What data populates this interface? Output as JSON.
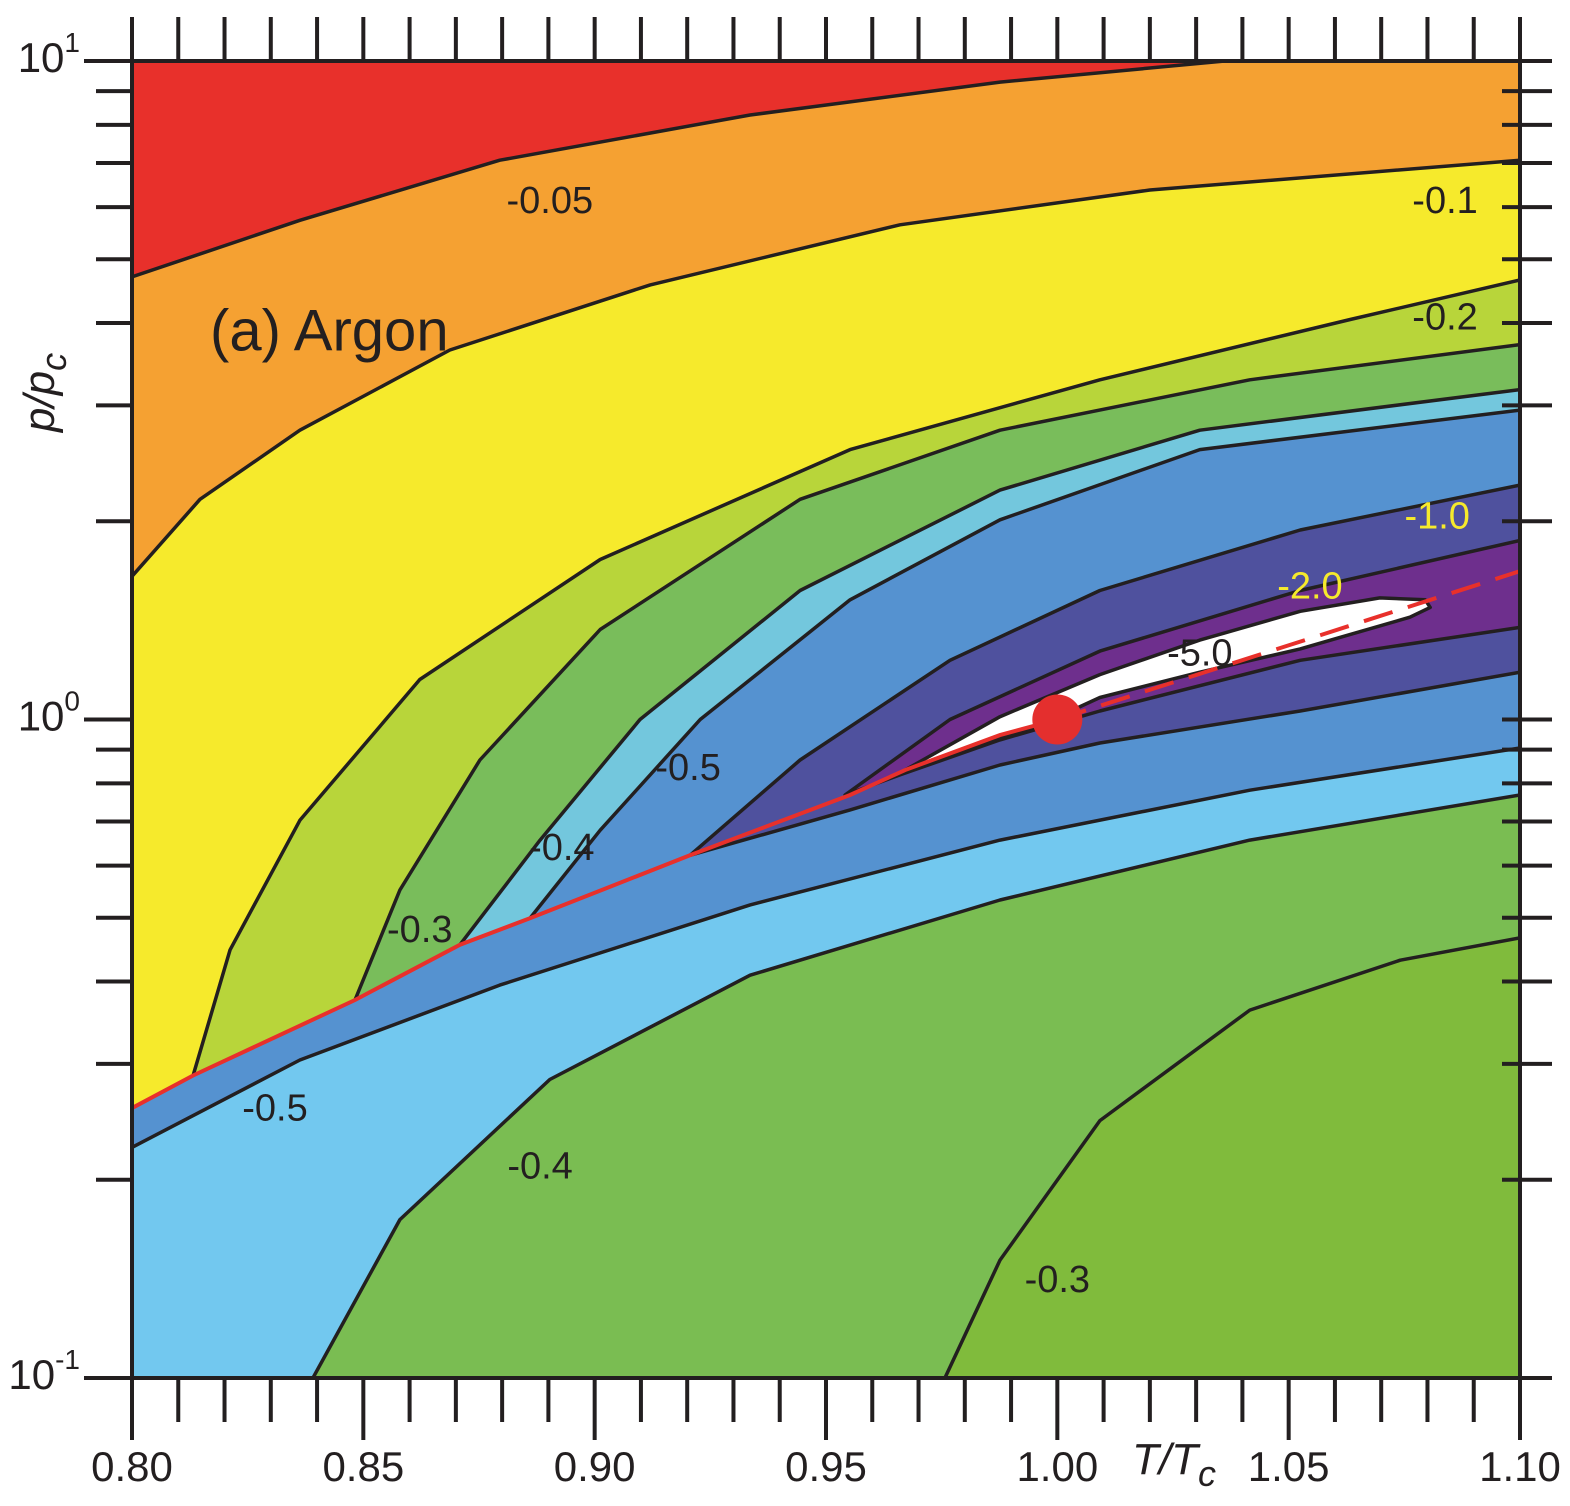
{
  "chart_data": {
    "type": "contour",
    "annotation": "(a) Argon",
    "xlabel": {
      "text": "T/T",
      "subscript": "c"
    },
    "ylabel": {
      "text": "p/p",
      "subscript": "c"
    },
    "xlim": [
      0.8,
      1.1
    ],
    "ylim": [
      0.1,
      10
    ],
    "yscale": "log",
    "xticks": [
      {
        "value": 0.8,
        "label": "0.80"
      },
      0.85,
      {
        "value": 0.9,
        "label": "0.90"
      },
      0.95,
      {
        "value": 1.0,
        "label": "1.00"
      },
      1.05,
      {
        "value": 1.1,
        "label": "1.10"
      }
    ],
    "xminorticks": [
      0.81,
      0.82,
      0.83,
      0.84,
      0.86,
      0.87,
      0.88,
      0.89,
      0.91,
      0.92,
      0.93,
      0.94,
      0.96,
      0.97,
      0.98,
      0.99,
      1.01,
      1.02,
      1.03,
      1.04,
      1.06,
      1.07,
      1.08,
      1.09
    ],
    "yticks": [
      {
        "value": 0.1,
        "label": "10",
        "exponent": "-1"
      },
      {
        "value": 1,
        "label": "10",
        "exponent": "0"
      },
      {
        "value": 10,
        "label": "10",
        "exponent": "1"
      }
    ],
    "yminorticks": [
      0.2,
      0.3,
      0.4,
      0.5,
      0.6,
      0.7,
      0.8,
      0.9,
      2,
      3,
      4,
      5,
      6,
      7,
      8,
      9
    ],
    "background": "#80bb3c",
    "regions": [
      {
        "fill": "#7abd52",
        "x": [
          0.9757,
          0.9876,
          1.0092,
          1.0416,
          1.0741,
          1.1
        ],
        "y": [
          0.1,
          0.151,
          0.246,
          0.362,
          0.431,
          0.466
        ]
      },
      {
        "fill": "#72c8ef",
        "x": [
          0.8391,
          0.8579,
          0.8903,
          0.9336,
          0.9876,
          1.0416,
          1.1
        ],
        "y": [
          0.1,
          0.174,
          0.284,
          0.409,
          0.532,
          0.656,
          0.768
        ]
      },
      {
        "fill": "#5592d0",
        "x": [
          0.8,
          0.8363,
          0.8795,
          0.9336,
          0.9876,
          1.0416,
          1.1
        ],
        "y": [
          0.224,
          0.304,
          0.395,
          0.523,
          0.656,
          0.781,
          0.905
        ]
      },
      {
        "fill": "#4f519e",
        "x": [
          0.9206,
          0.9552,
          0.9876,
          1.0092,
          1.0525,
          1.1
        ],
        "y": [
          0.622,
          0.729,
          0.853,
          0.921,
          1.03,
          1.18
        ]
      },
      {
        "fill": "#6e2f8d",
        "closed": true,
        "x": [
          0.9541,
          0.9768,
          1.0092,
          1.0525,
          1.1,
          1.1,
          1.0525,
          1.0092,
          0.9876,
          0.966
        ],
        "y": [
          0.768,
          1.0,
          1.27,
          1.57,
          1.87,
          1.38,
          1.23,
          1.03,
          0.931,
          0.824
        ]
      },
      {
        "fill": "#ffffff",
        "closed": true,
        "x": [
          0.9671,
          0.9876,
          1.0092,
          1.0308,
          1.0525,
          1.0697,
          1.0795,
          1.0806,
          1.0762,
          1.0525,
          1.0308,
          1.0092,
          0.9963,
          0.979
        ],
        "y": [
          0.838,
          1.01,
          1.17,
          1.32,
          1.46,
          1.53,
          1.52,
          1.48,
          1.43,
          1.28,
          1.18,
          1.08,
          0.981,
          0.893
        ]
      },
      {
        "fill": "#5592d0",
        "x": [
          0.9206,
          0.9444,
          0.9768,
          1.0092,
          1.0525,
          1.1
        ],
        "y": [
          0.622,
          0.868,
          1.23,
          1.57,
          1.94,
          2.27
        ]
      },
      {
        "fill": "#73c7dd",
        "x": [
          0.886,
          0.9012,
          0.9228,
          0.9552,
          0.9876,
          1.0308,
          1.1
        ],
        "y": [
          0.499,
          0.679,
          1.0,
          1.52,
          2.01,
          2.57,
          2.95
        ]
      },
      {
        "fill": "#79bd5b",
        "x": [
          0.8709,
          0.8882,
          0.9098,
          0.9444,
          0.9876,
          1.0308,
          1.1
        ],
        "y": [
          0.455,
          0.656,
          1.0,
          1.57,
          2.23,
          2.75,
          3.17
        ]
      },
      {
        "fill": "#b8d53a",
        "x": [
          0.8482,
          0.8579,
          0.8752,
          0.9012,
          0.9444,
          0.9876,
          1.0416,
          1.1
        ],
        "y": [
          0.375,
          0.551,
          0.868,
          1.37,
          2.16,
          2.75,
          3.28,
          3.71
        ]
      },
      {
        "fill": "#f6ea2c",
        "x": [
          0.8132,
          0.8212,
          0.8363,
          0.8622,
          0.9012,
          0.9552,
          1.0092,
          1.0633,
          1.1
        ],
        "y": [
          0.288,
          0.447,
          0.703,
          1.15,
          1.75,
          2.57,
          3.28,
          4.05,
          4.65
        ]
      },
      {
        "fill": "#f5a132",
        "x": [
          0.8,
          0.8147,
          0.8363,
          0.8687,
          0.912,
          0.966,
          1.02,
          1.1
        ],
        "y": [
          1.65,
          2.16,
          2.75,
          3.64,
          4.57,
          5.64,
          6.37,
          7.07
        ]
      },
      {
        "fill": "#e8302b",
        "x": [
          0.8,
          0.8363,
          0.8795,
          0.9336,
          0.9876,
          1.0362
        ],
        "y": [
          4.7,
          5.73,
          7.07,
          8.28,
          9.29,
          10
        ]
      }
    ],
    "saturation": {
      "color": "#e8302b",
      "x": [
        0.8,
        0.8132,
        0.8482,
        0.8709,
        0.886,
        0.9206,
        0.9552,
        0.9671,
        0.9876,
        1.0
      ],
      "y": [
        0.257,
        0.288,
        0.375,
        0.455,
        0.499,
        0.622,
        0.768,
        0.838,
        0.947,
        1.0
      ]
    },
    "extension": {
      "color": "#e8302b",
      "x": [
        1.0,
        1.1
      ],
      "y": [
        1.0,
        1.68
      ]
    },
    "critical_point": {
      "color": "#e42f2e",
      "x": 1.0,
      "y": 1.0
    },
    "contour_labels": [
      {
        "text": "-0.05",
        "x": 0.8903,
        "y": 6.09,
        "color": "#231f20"
      },
      {
        "text": "-0.1",
        "x": 1.0838,
        "y": 6.09,
        "color": "#231f20"
      },
      {
        "text": "-0.2",
        "x": 1.0838,
        "y": 4.05,
        "color": "#231f20"
      },
      {
        "text": "-0.5",
        "x": 0.9202,
        "y": 0.838,
        "color": "#231f20"
      },
      {
        "text": "-0.4",
        "x": 0.8929,
        "y": 0.634,
        "color": "#231f20"
      },
      {
        "text": "-0.3",
        "x": 0.8622,
        "y": 0.476,
        "color": "#231f20"
      },
      {
        "text": "-1.0",
        "x": 1.0821,
        "y": 2.02,
        "color": "#f6ea2c"
      },
      {
        "text": "-2.0",
        "x": 1.0546,
        "y": 1.58,
        "color": "#f6ea2c"
      },
      {
        "text": "-5.0",
        "x": 1.0308,
        "y": 1.25,
        "color": "#231f20"
      },
      {
        "text": "-0.5",
        "x": 0.8309,
        "y": 0.255,
        "color": "#231f20"
      },
      {
        "text": "-0.4",
        "x": 0.8882,
        "y": 0.208,
        "color": "#231f20"
      },
      {
        "text": "-0.3",
        "x": 1.0,
        "y": 0.14,
        "color": "#231f20"
      }
    ]
  }
}
